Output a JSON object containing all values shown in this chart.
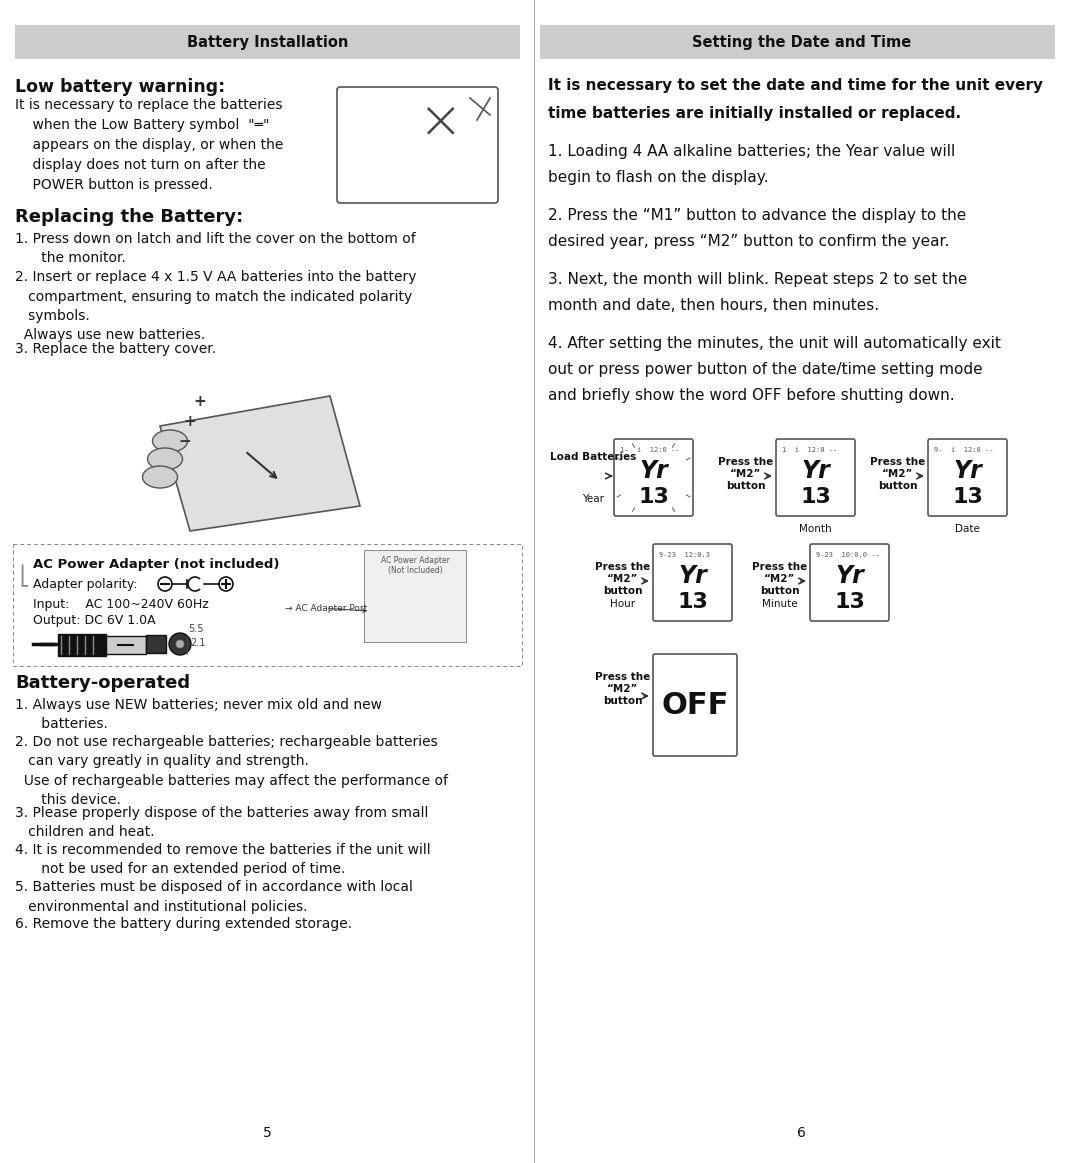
{
  "bg_color": "#ffffff",
  "header_bg": "#cccccc",
  "header_left": "Battery Installation",
  "header_right": "Setting the Date and Time",
  "page_left": "5",
  "page_right": "6",
  "lbw_title": "Low battery warning:",
  "lbw_text_lines": [
    "It is necessary to replace the batteries",
    "    when the Low Battery symbol  \"═\"",
    "    appears on the display, or when the",
    "    display does not turn on after the",
    "    POWER button is pressed."
  ],
  "replacing_title": "Replacing the Battery:",
  "replacing_items": [
    "1. Press down on latch and lift the cover on the bottom of\n      the monitor.",
    "2. Insert or replace 4 x 1.5 V AA batteries into the battery\n   compartment, ensuring to match the indicated polarity\n   symbols.\n  Always use new batteries.",
    "3. Replace the battery cover."
  ],
  "bat_op_title": "Battery-operated",
  "bat_op_items": [
    "1. Always use NEW batteries; never mix old and new\n      batteries.",
    "2. Do not use rechargeable batteries; rechargeable batteries\n   can vary greatly in quality and strength.\n  Use of rechargeable batteries may affect the performance of\n      this device.",
    "3. Please properly dispose of the batteries away from small\n   children and heat.",
    "4. It is recommended to remove the batteries if the unit will\n      not be used for an extended period of time.",
    "5. Batteries must be disposed of in accordance with local\n   environmental and institutional policies.",
    "6. Remove the battery during extended storage."
  ],
  "right_intro_line1": "It is necessary to set the date and time for the unit every",
  "right_intro_line2": "time batteries are initially installed or replaced.",
  "right_steps": [
    [
      "1. Loading 4 AA alkaline batteries; the Year value will",
      "begin to flash on the display."
    ],
    [
      "2. Press the “M1” button to advance the display to the",
      "desired year, press “M2” button to confirm the year."
    ],
    [
      "3. Next, the month will blink. Repeat steps 2 to set the",
      "month and date, then hours, then minutes."
    ],
    [
      "4. After setting the minutes, the unit will automatically exit",
      "out or press power button of the date/time setting mode",
      "and briefly show the word OFF before shutting down."
    ]
  ],
  "lcd_row1": [
    {
      "label_top": "Load Batteries",
      "label_bot": "Year",
      "status": "1-  i  12:0 --",
      "arrow_before": true,
      "label_below": ""
    },
    {
      "label_top": "Press the",
      "label_mid": "“M2”",
      "label_bot": "button",
      "status": "1  i  12:0 --",
      "arrow_before": true,
      "label_below": "Month"
    },
    {
      "label_top": "Press the",
      "label_mid": "“M2”",
      "label_bot": "button",
      "status": "9-  i  12:0 --",
      "arrow_before": true,
      "label_below": "Date"
    }
  ],
  "lcd_row2": [
    {
      "label_top": "Press the",
      "label_mid": "“M2”",
      "label_bot": "button",
      "status": "9-23  12:0.3",
      "arrow_before": true,
      "label_below": "Hour"
    },
    {
      "label_top": "Press the",
      "label_mid": "“M2”",
      "label_bot": "button",
      "status": "9-23  10:0.0 --",
      "arrow_before": true,
      "label_below": "Minute"
    }
  ],
  "lcd_row3_label": [
    "Press the",
    "“M2”",
    "button"
  ],
  "lcd_off_text": "OFF"
}
